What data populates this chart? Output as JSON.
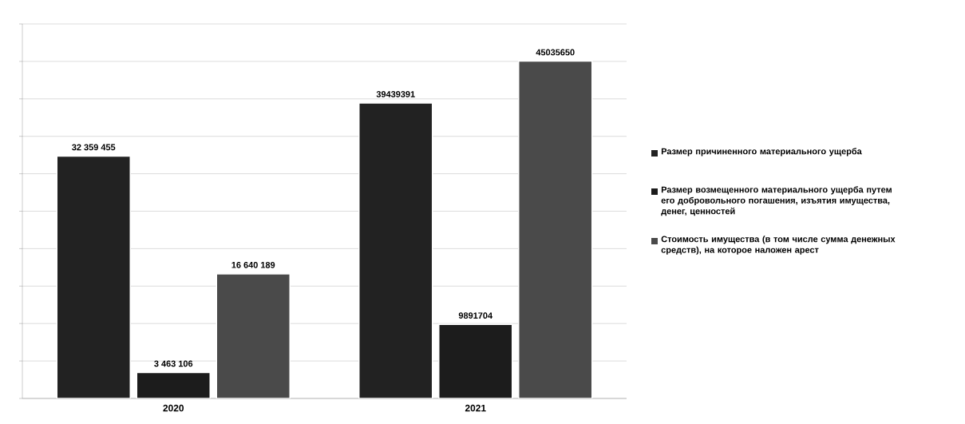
{
  "chart_data": {
    "type": "bar",
    "categories": [
      "2020",
      "2021"
    ],
    "series": [
      {
        "name": "Размер причиненного материального ущерба",
        "color": "#222222",
        "values": [
          32359455,
          39439391
        ],
        "value_labels": [
          "32 359 455",
          "39439391"
        ]
      },
      {
        "name": "Размер возмещенного материального ущерба путем его добровольного погашения, изъятия имущества, денег, ценностей",
        "color": "#1c1c1c",
        "values": [
          3463106,
          9891704
        ],
        "value_labels": [
          "3 463 106",
          "9891704"
        ]
      },
      {
        "name": "Стоимость имущества (в том числе сумма денежных средств), на которое наложен арест",
        "color": "#4a4a4a",
        "values": [
          16640189,
          45035650
        ],
        "value_labels": [
          "16 640 189",
          "45035650"
        ]
      }
    ],
    "ylim": [
      0,
      50000000
    ],
    "yticks": [
      {
        "value": 0,
        "label": null
      },
      {
        "value": 5000000,
        "label": null
      },
      {
        "value": 10000000,
        "label": null
      },
      {
        "value": 15000000,
        "label": null
      },
      {
        "value": 20000000,
        "label": null
      },
      {
        "value": 25000000,
        "label": null
      },
      {
        "value": 30000000,
        "label": null
      },
      {
        "value": 35000000,
        "label": null
      },
      {
        "value": 40000000,
        "label": null
      },
      {
        "value": 45000000,
        "label": null
      },
      {
        "value": 50000000,
        "label": null
      }
    ],
    "tick_labels": "x",
    "grid": "y",
    "legend": "right"
  }
}
